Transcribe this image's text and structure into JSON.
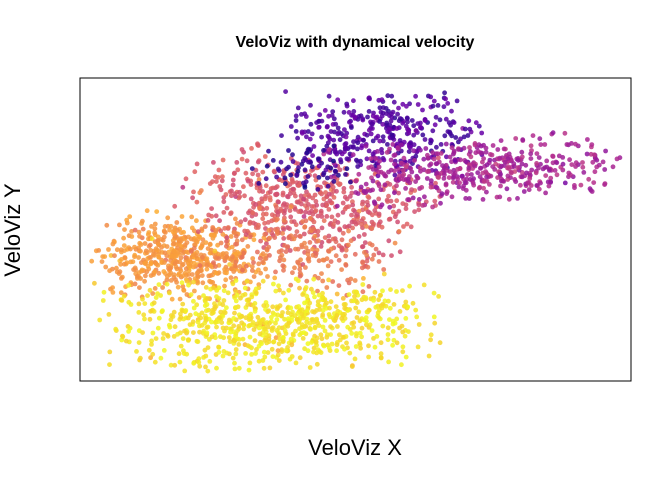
{
  "chart_data": {
    "type": "scatter",
    "title": "VeloViz with dynamical velocity",
    "xlabel": "VeloViz X",
    "ylabel": "VeloViz Y",
    "xlim": [
      0,
      100
    ],
    "ylim": [
      0,
      100
    ],
    "grid": false,
    "legend": "none",
    "axis_ticks": "none",
    "colormap": "plasma",
    "color_stops": [
      "#0d0887",
      "#6a00a8",
      "#b12a90",
      "#e16462",
      "#fca636",
      "#f0f921"
    ],
    "point_opacity": 0.85,
    "clusters": [
      {
        "cx": 17,
        "cy": 40,
        "sx": 8,
        "sy": 7,
        "n": 520,
        "rot": -0.18,
        "c0": 0.72,
        "c1": 0.8
      },
      {
        "cx": 40,
        "cy": 59,
        "sx": 11,
        "sy": 8,
        "n": 500,
        "rot": -0.35,
        "c0": 0.52,
        "c1": 0.62
      },
      {
        "cx": 55,
        "cy": 84,
        "sx": 9,
        "sy": 7,
        "n": 360,
        "rot": 0.0,
        "c0": 0.08,
        "c1": 0.22
      },
      {
        "cx": 73,
        "cy": 71,
        "sx": 13,
        "sy": 5.5,
        "n": 460,
        "rot": 0.12,
        "c0": 0.3,
        "c1": 0.45
      },
      {
        "cx": 38,
        "cy": 43,
        "sx": 9,
        "sy": 6,
        "n": 170,
        "rot": -0.3,
        "c0": 0.62,
        "c1": 0.72
      },
      {
        "cx": 34,
        "cy": 17,
        "sx": 15,
        "sy": 7.5,
        "n": 750,
        "rot": 0.06,
        "c0": 0.9,
        "c1": 1.0
      },
      {
        "cx": 41,
        "cy": 72,
        "sx": 5,
        "sy": 4,
        "n": 60,
        "rot": 0.0,
        "c0": 0.02,
        "c1": 0.12
      }
    ]
  }
}
